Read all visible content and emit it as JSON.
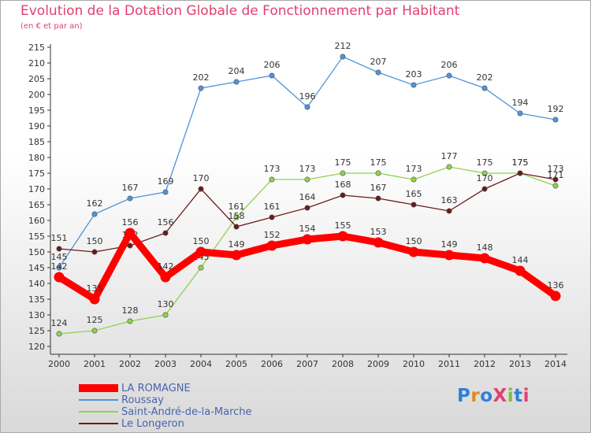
{
  "chart_data": {
    "type": "line",
    "title": "Evolution de la Dotation Globale de Fonctionnement par Habitant",
    "subtitle": "(en € et par an)",
    "xlabel": "",
    "ylabel": "",
    "x": [
      "2000",
      "2001",
      "2002",
      "2003",
      "2004",
      "2005",
      "2006",
      "2007",
      "2008",
      "2009",
      "2010",
      "2011",
      "2012",
      "2013",
      "2014"
    ],
    "ylim": [
      120,
      215
    ],
    "yticks": [
      120,
      125,
      130,
      135,
      140,
      145,
      150,
      155,
      160,
      165,
      170,
      175,
      180,
      185,
      190,
      195,
      200,
      205,
      210,
      215
    ],
    "grid": false,
    "legend_position": "bottom-left",
    "series": [
      {
        "name": "LA ROMAGNE",
        "color": "#ff0000",
        "emphasis": true,
        "values": [
          142,
          135,
          156,
          142,
          150,
          149,
          152,
          154,
          155,
          153,
          150,
          149,
          148,
          144,
          136
        ],
        "labels": [
          "142",
          "135",
          "156",
          "142",
          "150",
          "149",
          "152",
          "154",
          "155",
          "153",
          "150",
          "149",
          "148",
          "144",
          "136"
        ]
      },
      {
        "name": "Roussay",
        "color": "#4f94d9",
        "values": [
          145,
          162,
          167,
          169,
          202,
          204,
          206,
          196,
          212,
          207,
          203,
          206,
          202,
          194,
          192
        ],
        "labels": [
          "145",
          "162",
          "167",
          "169",
          "202",
          "204",
          "206",
          "196",
          "212",
          "207",
          "203",
          "206",
          "202",
          "194",
          "192"
        ]
      },
      {
        "name": "Saint-André-de-la-Marche",
        "color": "#8fd14f",
        "values": [
          124,
          125,
          128,
          130,
          145,
          161,
          173,
          173,
          175,
          175,
          173,
          177,
          175,
          175,
          171
        ],
        "labels": [
          "124",
          "125",
          "128",
          "130",
          "145",
          "161",
          "173",
          "173",
          "175",
          "175",
          "173",
          "177",
          "175",
          "175",
          "171"
        ]
      },
      {
        "name": "Le Longeron",
        "color": "#6b1a1a",
        "values": [
          151,
          150,
          152,
          156,
          170,
          158,
          161,
          164,
          168,
          167,
          165,
          163,
          170,
          175,
          173
        ],
        "labels": [
          "151",
          "150",
          "152",
          "156",
          "170",
          "158",
          "161",
          "164",
          "168",
          "167",
          "165",
          "163",
          "170",
          "175",
          "173"
        ]
      }
    ]
  },
  "logo": {
    "text": "ProXiti"
  }
}
